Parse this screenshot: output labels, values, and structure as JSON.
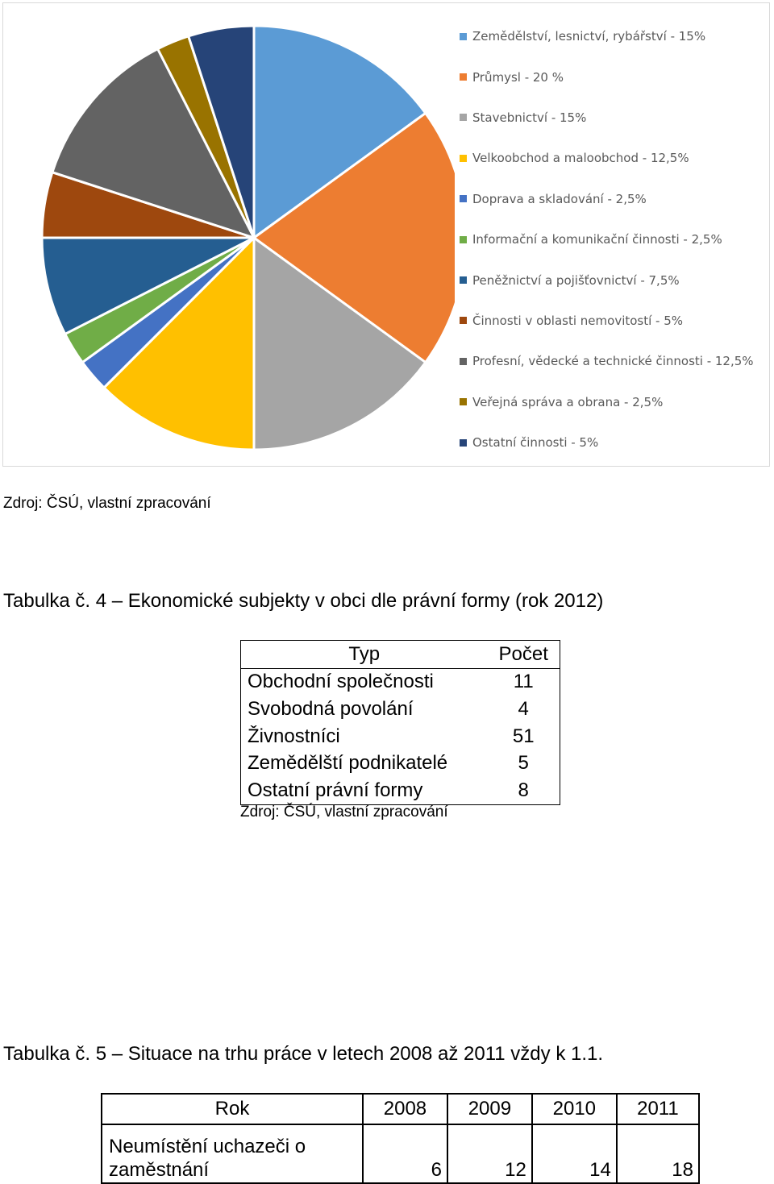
{
  "chart_data": {
    "type": "pie",
    "title": "",
    "categories": [
      "Zemědělství, lesnictví, rybářství - 15%",
      "Průmysl - 20 %",
      "Stavebnictví - 15%",
      "Velkoobchod a maloobchod - 12,5%",
      "Doprava a skladování - 2,5%",
      "Informační a komunikační činnosti - 2,5%",
      "Peněžnictví a pojišťovnictví - 7,5%",
      "Činnosti v oblasti nemovitostí - 5%",
      "Profesní, vědecké a technické činnosti - 12,5%",
      "Veřejná správa a obrana - 2,5%",
      "Ostatní činnosti - 5%"
    ],
    "values": [
      15,
      20,
      15,
      12.5,
      2.5,
      2.5,
      7.5,
      5,
      12.5,
      2.5,
      5
    ],
    "colors": [
      "#5B9BD5",
      "#ED7D31",
      "#A5A5A5",
      "#FFC000",
      "#4472C4",
      "#70AD47",
      "#255E91",
      "#9E480E",
      "#636363",
      "#997300",
      "#264478"
    ],
    "legend_position": "right"
  },
  "chart_source": "Zdroj: ČSÚ, vlastní zpracování",
  "table4": {
    "heading": "Tabulka č. 4 – Ekonomické subjekty v obci dle právní formy (rok 2012)",
    "columns": [
      "Typ",
      "Počet"
    ],
    "rows": [
      [
        "Obchodní společnosti",
        "11"
      ],
      [
        "Svobodná povolání",
        "4"
      ],
      [
        "Živnostníci",
        "51"
      ],
      [
        "Zemědělští podnikatelé",
        "5"
      ],
      [
        "Ostatní právní formy",
        "8"
      ]
    ],
    "source": "Zdroj: ČSÚ, vlastní zpracování"
  },
  "table5": {
    "heading": "Tabulka č. 5 – Situace na trhu práce v letech 2008 až 2011 vždy k 1.1.",
    "columns": [
      "Rok",
      "2008",
      "2009",
      "2010",
      "2011"
    ],
    "row_label_line1": "Neumístění uchazeči o",
    "row_label_line2": "zaměstnání",
    "values": [
      "6",
      "12",
      "14",
      "18"
    ]
  }
}
